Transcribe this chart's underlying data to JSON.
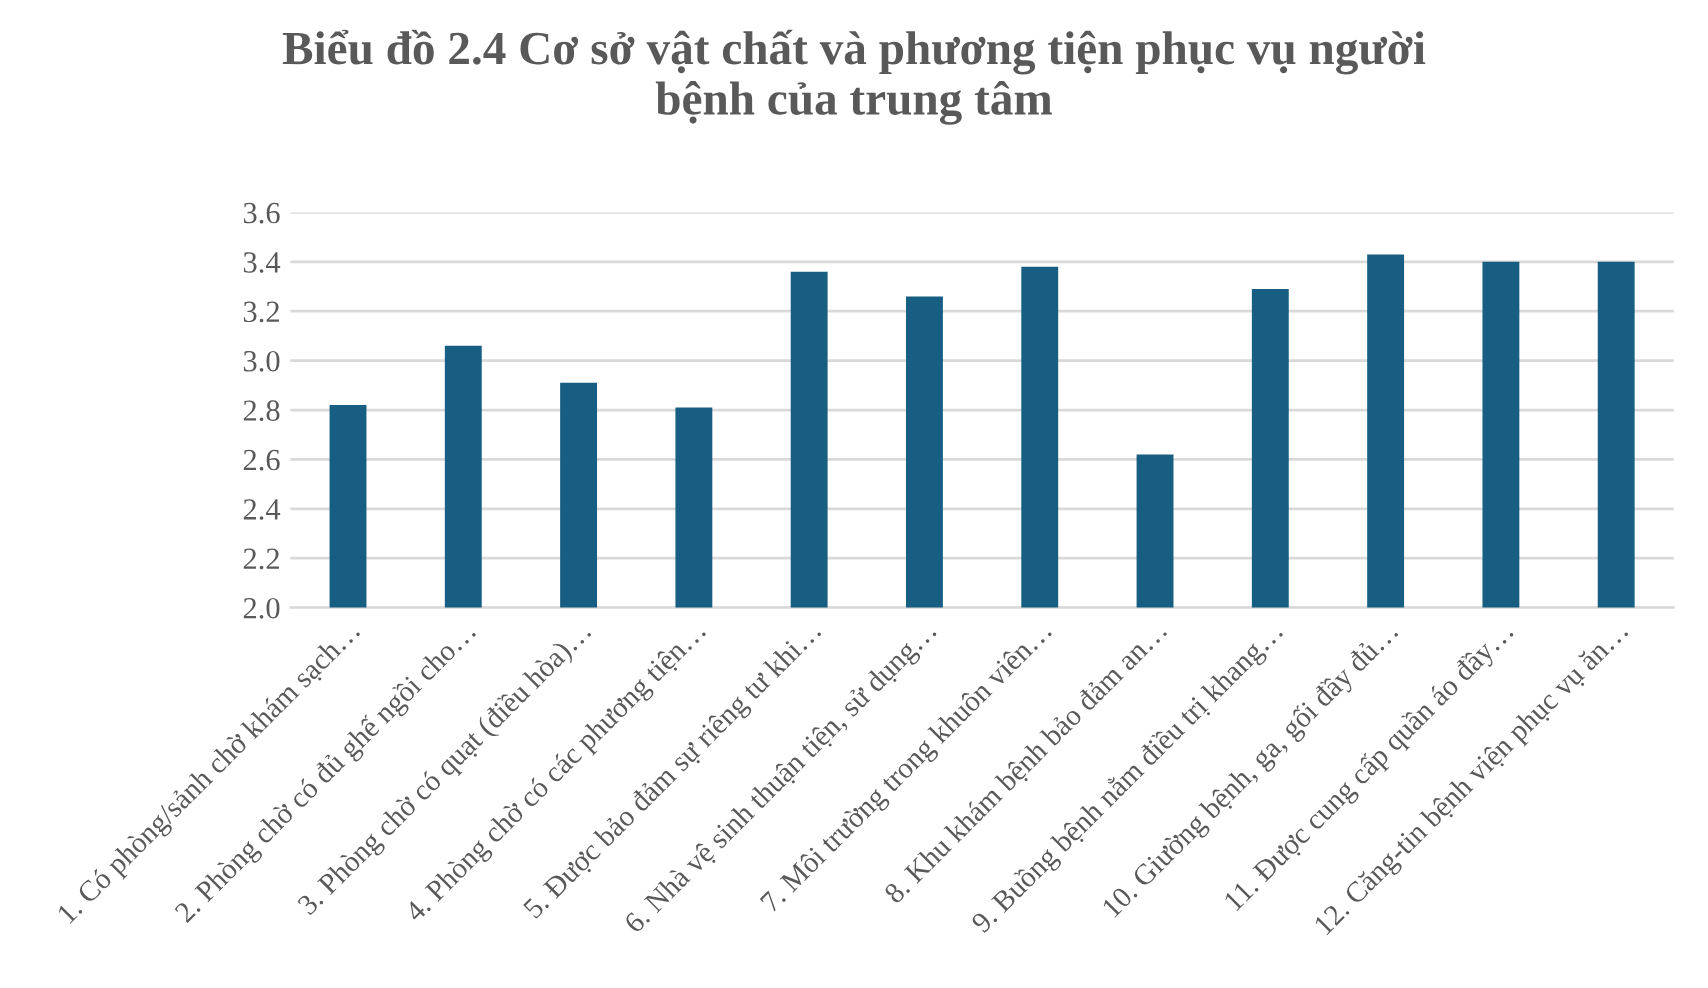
{
  "chart_data": {
    "type": "bar",
    "title": "Biểu đồ 2.4 Cơ sở vật chất và phương tiện phục vụ người\nbệnh của trung tâm",
    "categories": [
      "1. Có phòng/sảnh chờ khám sạch…",
      "2. Phòng chờ có đủ ghế ngồi cho…",
      "3. Phòng chờ có quạt (điều hòa)…",
      "4. Phòng chờ có các phương tiện…",
      "5. Được bảo đảm sự riêng tư khi…",
      "6. Nhà vệ sinh thuận tiện, sử dụng…",
      "7. Môi trường trong khuôn viên…",
      "8. Khu khám bệnh bảo đảm an…",
      "9. Buồng bệnh nằm điều trị khang…",
      "10. Giường bệnh, ga, gối đầy đủ…",
      "11. Được cung cấp quần áo đầy…",
      "12. Căng-tin bệnh viện phục vụ ăn…"
    ],
    "values": [
      2.82,
      3.06,
      2.91,
      2.81,
      3.36,
      3.26,
      3.38,
      2.62,
      3.29,
      3.43,
      3.4,
      3.4
    ],
    "color": "#175e82",
    "ylim": [
      2.0,
      3.6
    ],
    "yticks": [
      {
        "value": 2.0,
        "label": "2.0"
      },
      {
        "value": 2.2,
        "label": "2.2"
      },
      {
        "value": 2.4,
        "label": "2.4"
      },
      {
        "value": 2.6,
        "label": "2.6"
      },
      {
        "value": 2.8,
        "label": "2.8"
      },
      {
        "value": 3.0,
        "label": "3.0"
      },
      {
        "value": 3.2,
        "label": "3.2"
      },
      {
        "value": 3.4,
        "label": "3.4"
      },
      {
        "value": 3.6,
        "label": "3.6"
      }
    ],
    "grid": "y"
  }
}
